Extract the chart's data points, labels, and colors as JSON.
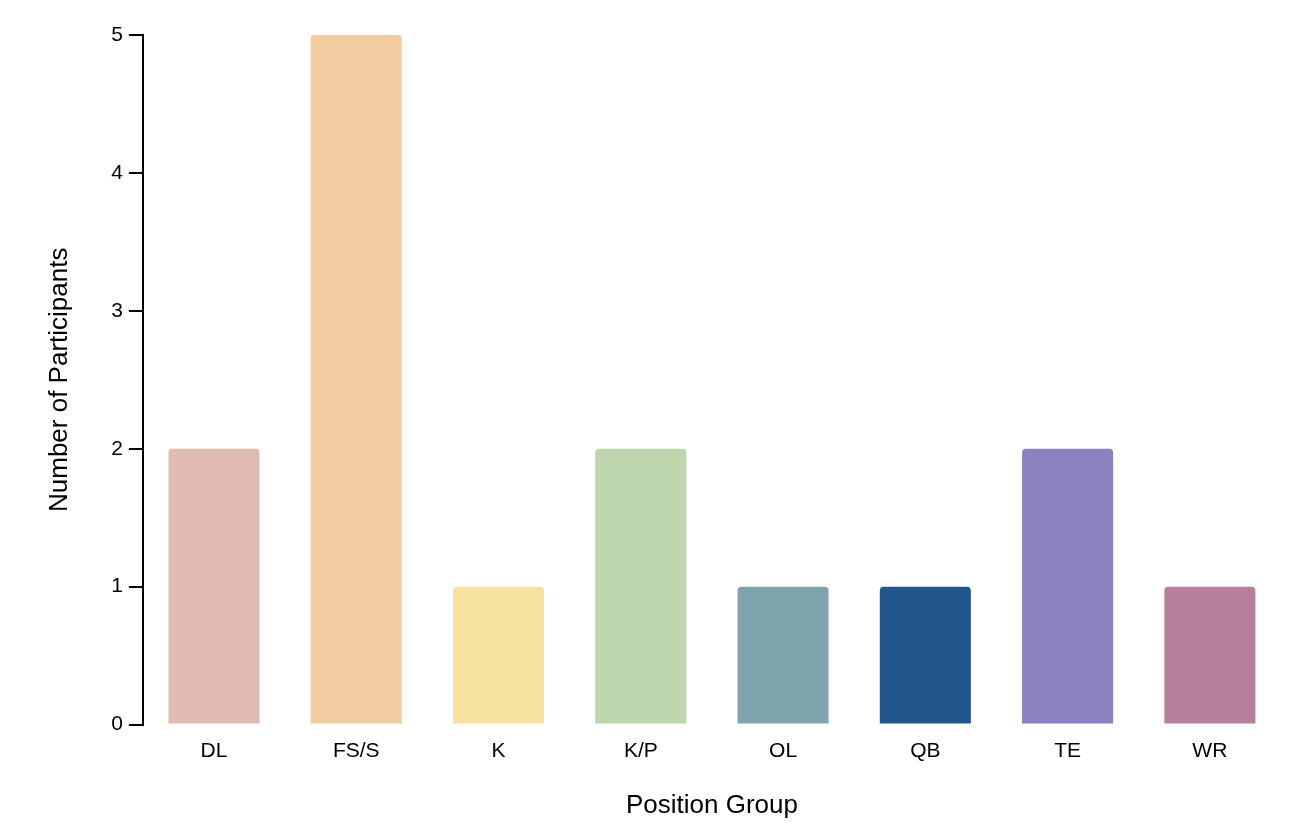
{
  "chart_data": {
    "type": "bar",
    "xlabel": "Position Group",
    "ylabel": "Number of Participants",
    "categories": [
      "DL",
      "FS/S",
      "K",
      "K/P",
      "OL",
      "QB",
      "TE",
      "WR"
    ],
    "values": [
      2,
      5,
      1,
      2,
      1,
      1,
      2,
      1
    ],
    "colors": [
      "#dfbbb1",
      "#f2cca1",
      "#f8e2a0",
      "#bdd6ad",
      "#7fa4ad",
      "#23568c",
      "#8b81bf",
      "#b87f9c"
    ],
    "ylim": [
      0,
      5
    ],
    "yticks": [
      0,
      1,
      2,
      3,
      4,
      5
    ],
    "grid": false,
    "legend": false
  }
}
